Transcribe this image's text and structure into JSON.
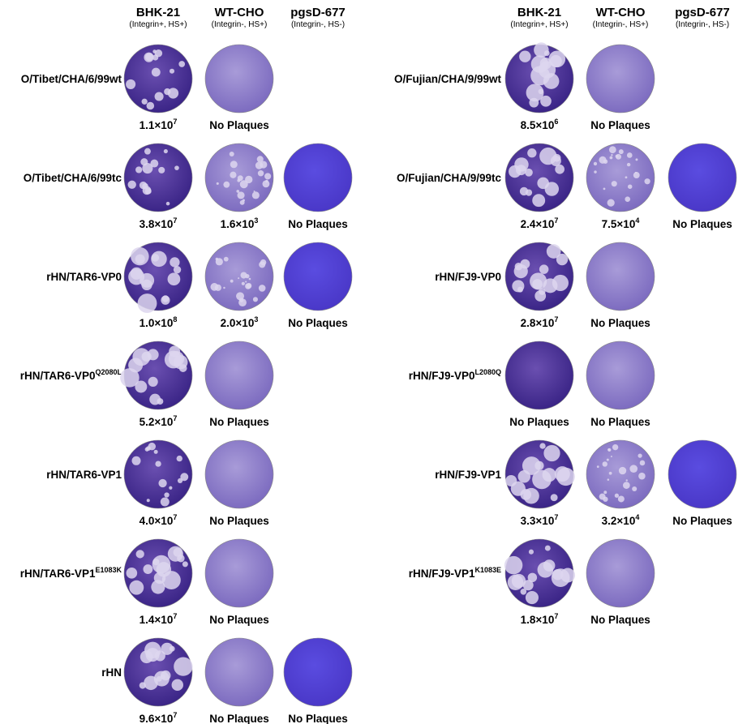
{
  "columns": [
    {
      "name": "BHK-21",
      "note": "(Integrin+, HS+)"
    },
    {
      "name": "WT-CHO",
      "note": "(Integrin-, HS+)"
    },
    {
      "name": "pgsD-677",
      "note": "(Integrin-, HS-)"
    }
  ],
  "panels": [
    {
      "rows": [
        {
          "label": "O/Tibet/CHA/6/99wt",
          "results": [
            {
              "titer": "1.1×10",
              "exponent": "7"
            },
            {
              "text": "No Plaques"
            }
          ]
        },
        {
          "label": "O/Tibet/CHA/6/99tc",
          "results": [
            {
              "titer": "3.8×10",
              "exponent": "7"
            },
            {
              "titer": "1.6×10",
              "exponent": "3"
            },
            {
              "text": "No Plaques"
            }
          ]
        },
        {
          "label": "rHN/TAR6-VP0",
          "results": [
            {
              "titer": "1.0×10",
              "exponent": "8"
            },
            {
              "titer": "2.0×10",
              "exponent": "3"
            },
            {
              "text": "No Plaques"
            }
          ]
        },
        {
          "label": "rHN/TAR6-VP0",
          "label_sup": "Q2080L",
          "results": [
            {
              "titer": "5.2×10",
              "exponent": "7"
            },
            {
              "text": "No Plaques"
            }
          ]
        },
        {
          "label": "rHN/TAR6-VP1",
          "results": [
            {
              "titer": "4.0×10",
              "exponent": "7"
            },
            {
              "text": "No Plaques"
            }
          ]
        },
        {
          "label": "rHN/TAR6-VP1",
          "label_sup": "E1083K",
          "results": [
            {
              "titer": "1.4×10",
              "exponent": "7"
            },
            {
              "text": "No Plaques"
            }
          ]
        },
        {
          "label": "rHN",
          "results": [
            {
              "titer": "9.6×10",
              "exponent": "7"
            },
            {
              "text": "No Plaques"
            },
            {
              "text": "No Plaques"
            }
          ]
        }
      ]
    },
    {
      "rows": [
        {
          "label": "O/Fujian/CHA/9/99wt",
          "results": [
            {
              "titer": "8.5×10",
              "exponent": "6"
            },
            {
              "text": "No Plaques"
            }
          ]
        },
        {
          "label": "O/Fujian/CHA/9/99tc",
          "results": [
            {
              "titer": "2.4×10",
              "exponent": "7"
            },
            {
              "titer": "7.5×10",
              "exponent": "4"
            },
            {
              "text": "No Plaques"
            }
          ]
        },
        {
          "label": "rHN/FJ9-VP0",
          "results": [
            {
              "titer": "2.8×10",
              "exponent": "7"
            },
            {
              "text": "No Plaques"
            }
          ]
        },
        {
          "label": "rHN/FJ9-VP0",
          "label_sup": "L2080Q",
          "results": [
            {
              "text": "No Plaques"
            },
            {
              "text": "No Plaques"
            }
          ]
        },
        {
          "label": "rHN/FJ9-VP1",
          "results": [
            {
              "titer": "3.3×10",
              "exponent": "7"
            },
            {
              "titer": "3.2×10",
              "exponent": "4"
            },
            {
              "text": "No Plaques"
            }
          ]
        },
        {
          "label": "rHN/FJ9-VP1",
          "label_sup": "K1083E",
          "results": [
            {
              "titer": "1.8×10",
              "exponent": "7"
            },
            {
              "text": "No Plaques"
            }
          ]
        }
      ]
    }
  ]
}
